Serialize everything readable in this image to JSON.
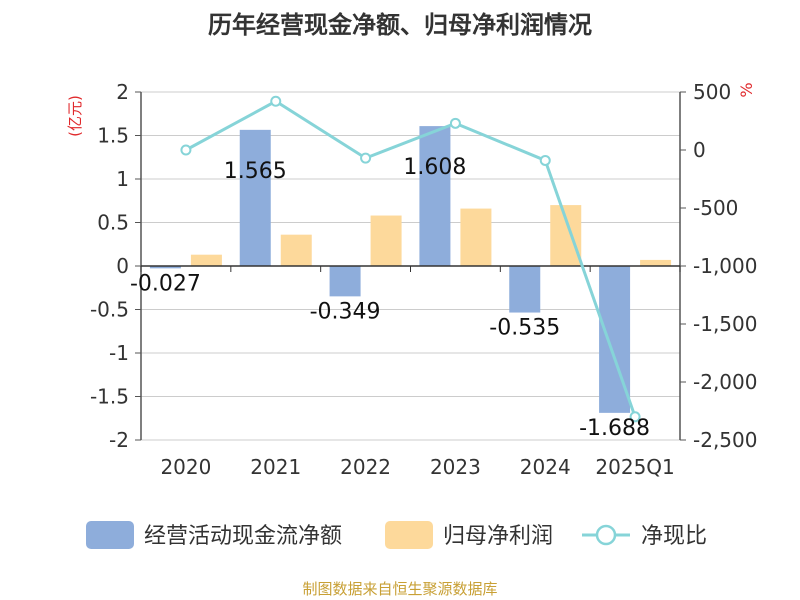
{
  "chart_data": {
    "type": "bar+line",
    "title": "历年经营现金净额、归母净利润情况",
    "categories": [
      "2020",
      "2021",
      "2022",
      "2023",
      "2024",
      "2025Q1"
    ],
    "series": [
      {
        "name": "经营活动现金流净额",
        "axis": "left",
        "kind": "bar",
        "color": "#8eaddb",
        "values": [
          -0.027,
          1.565,
          -0.349,
          1.608,
          -0.535,
          -1.688
        ],
        "labels": [
          "-0.027",
          "1.565",
          "-0.349",
          "1.608",
          "-0.535",
          "-1.688"
        ]
      },
      {
        "name": "归母净利润",
        "axis": "left",
        "kind": "bar",
        "color": "#fdd99b",
        "values": [
          0.13,
          0.36,
          0.58,
          0.66,
          0.7,
          0.07
        ]
      },
      {
        "name": "净现比",
        "axis": "right",
        "kind": "line",
        "color": "#86d4d8",
        "values": [
          0,
          420,
          -70,
          230,
          -90,
          -2300
        ]
      }
    ],
    "left_axis": {
      "unit": "(亿元)",
      "min": -2,
      "max": 2,
      "ticks": [
        2,
        1.5,
        1,
        0.5,
        0,
        -0.5,
        -1,
        -1.5,
        -2
      ],
      "tick_labels": [
        "2",
        "1.5",
        "1",
        "0.5",
        "0",
        "-0.5",
        "-1",
        "-1.5",
        "-2"
      ]
    },
    "right_axis": {
      "unit": "%",
      "min": -2500,
      "max": 500,
      "ticks": [
        500,
        0,
        -500,
        -1000,
        -1500,
        -2000,
        -2500
      ],
      "tick_labels": [
        "500",
        "0",
        "-500",
        "-1,000",
        "-1,500",
        "-2,000",
        "-2,500"
      ]
    },
    "legend": [
      {
        "label": "经营活动现金流净额",
        "kind": "bar",
        "color": "#8eaddb"
      },
      {
        "label": "归母净利润",
        "kind": "bar",
        "color": "#fdd99b"
      },
      {
        "label": "净现比",
        "kind": "line",
        "color": "#86d4d8"
      }
    ],
    "source": "制图数据来自恒生聚源数据库",
    "colors": {
      "axis_unit": "#e0292c",
      "source": "#c8a035",
      "grid": "#cccccc",
      "text": "#333333"
    }
  }
}
